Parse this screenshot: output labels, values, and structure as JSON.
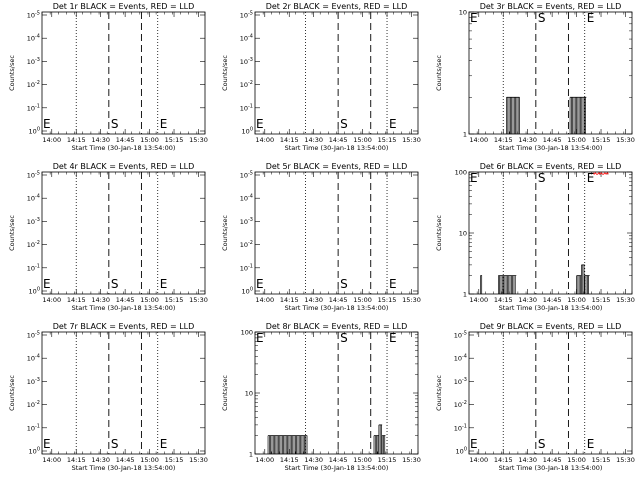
{
  "x_tick_labels": [
    "14:00",
    "14:15",
    "14:30",
    "14:45",
    "15:00",
    "15:15",
    "15:30"
  ],
  "xlabel": "Start Time (30-Jan-18 13:54:00)",
  "ylabel": "Counts/sec",
  "markers": {
    "start": "S",
    "end": "E"
  },
  "series_colors": {
    "events": "#000000",
    "lld": "#ff0000"
  },
  "chart_data": [
    {
      "type": "bar",
      "title": "Det 1r BLACK = Events, RED = LLD",
      "scale": "log-tiny",
      "xlabel": "Start Time (30-Jan-18 13:54:00)",
      "ylabel": "Counts/sec",
      "y_tick_labels": [
        "10^0",
        "10^-1",
        "10^-2",
        "10^-3",
        "10^-4",
        "10^-5"
      ],
      "xlim": [
        "13:54",
        "15:34"
      ],
      "dotted_x": [
        "14:15",
        "15:05"
      ],
      "dashed_x": [
        "14:35",
        "14:55"
      ],
      "s_at": "14:35",
      "e_at": "15:05",
      "events": [],
      "lld": []
    },
    {
      "type": "bar",
      "title": "Det 2r BLACK = Events, RED = LLD",
      "scale": "log-tiny",
      "xlabel": "Start Time (30-Jan-18 13:54:00)",
      "ylabel": "Counts/sec",
      "y_tick_labels": [
        "10^0",
        "10^-1",
        "10^-2",
        "10^-3",
        "10^-4",
        "10^-5"
      ],
      "xlim": [
        "13:54",
        "15:34"
      ],
      "dotted_x": [
        "14:25",
        "15:15"
      ],
      "dashed_x": [
        "14:45",
        "15:05"
      ],
      "s_at": "14:45",
      "e_at": "15:15",
      "events": [],
      "lld": []
    },
    {
      "type": "bar",
      "title": "Det 3r BLACK = Events, RED = LLD",
      "scale": "log",
      "xlabel": "Start Time (30-Jan-18 13:54:00)",
      "ylabel": "Counts/sec",
      "y_tick_labels": [
        "1",
        "10"
      ],
      "xlim": [
        "13:54",
        "15:34"
      ],
      "dotted_x": [
        "14:15",
        "15:05"
      ],
      "dashed_x": [
        "14:35",
        "14:55"
      ],
      "s_at": "14:35",
      "e_at": "15:05",
      "events": [
        {
          "from": "14:17",
          "to": "14:25",
          "value": 2
        },
        {
          "from": "14:56",
          "to": "15:06",
          "value": 2
        }
      ],
      "lld": []
    },
    {
      "type": "bar",
      "title": "Det 4r BLACK = Events, RED = LLD",
      "scale": "log-tiny",
      "xlabel": "Start Time (30-Jan-18 13:54:00)",
      "ylabel": "Counts/sec",
      "y_tick_labels": [
        "10^0",
        "10^-1",
        "10^-2",
        "10^-3",
        "10^-4",
        "10^-5"
      ],
      "xlim": [
        "13:54",
        "15:34"
      ],
      "dotted_x": [
        "14:15",
        "15:05"
      ],
      "dashed_x": [
        "14:35",
        "14:55"
      ],
      "s_at": "14:35",
      "e_at": "15:05",
      "events": [],
      "lld": []
    },
    {
      "type": "bar",
      "title": "Det 5r BLACK = Events, RED = LLD",
      "scale": "log-tiny",
      "xlabel": "Start Time (30-Jan-18 13:54:00)",
      "ylabel": "Counts/sec",
      "y_tick_labels": [
        "10^0",
        "10^-1",
        "10^-2",
        "10^-3",
        "10^-4",
        "10^-5"
      ],
      "xlim": [
        "13:54",
        "15:34"
      ],
      "dotted_x": [
        "14:25",
        "15:15"
      ],
      "dashed_x": [
        "14:45",
        "15:05"
      ],
      "s_at": "14:45",
      "e_at": "15:15",
      "events": [],
      "lld": []
    },
    {
      "type": "bar",
      "title": "Det 6r BLACK = Events, RED = LLD",
      "scale": "log",
      "xlabel": "Start Time (30-Jan-18 13:54:00)",
      "ylabel": "Counts/sec",
      "y_tick_labels": [
        "1",
        "10",
        "100"
      ],
      "xlim": [
        "13:54",
        "15:34"
      ],
      "dotted_x": [
        "14:15",
        "15:05"
      ],
      "dashed_x": [
        "14:35",
        "14:55"
      ],
      "s_at": "14:35",
      "e_at": "15:05",
      "events": [
        {
          "from": "14:01",
          "to": "14:02",
          "value": 2
        },
        {
          "from": "14:12",
          "to": "14:23",
          "value": 2
        },
        {
          "from": "15:00",
          "to": "15:03",
          "value": 2
        },
        {
          "from": "15:03",
          "to": "15:05",
          "value": 3
        },
        {
          "from": "15:05",
          "to": "15:08",
          "value": 2
        }
      ],
      "lld": [
        {
          "from": "15:10",
          "to": "15:20",
          "value": 95
        }
      ]
    },
    {
      "type": "bar",
      "title": "Det 7r BLACK = Events, RED = LLD",
      "scale": "log-tiny",
      "xlabel": "Start Time (30-Jan-18 13:54:00)",
      "ylabel": "Counts/sec",
      "y_tick_labels": [
        "10^0",
        "10^-1",
        "10^-2",
        "10^-3",
        "10^-4",
        "10^-5"
      ],
      "xlim": [
        "13:54",
        "15:34"
      ],
      "dotted_x": [
        "14:15",
        "15:05"
      ],
      "dashed_x": [
        "14:35",
        "14:55"
      ],
      "s_at": "14:35",
      "e_at": "15:05",
      "events": [],
      "lld": []
    },
    {
      "type": "bar",
      "title": "Det 8r BLACK = Events, RED = LLD",
      "scale": "log",
      "xlabel": "Start Time (30-Jan-18 13:54:00)",
      "ylabel": "Counts/sec",
      "y_tick_labels": [
        "1",
        "10",
        "100"
      ],
      "xlim": [
        "13:54",
        "15:34"
      ],
      "dotted_x": [
        "14:25",
        "15:15"
      ],
      "dashed_x": [
        "14:45",
        "15:05"
      ],
      "s_at": "14:45",
      "e_at": "15:15",
      "events": [
        {
          "from": "14:02",
          "to": "14:26",
          "value": 2
        },
        {
          "from": "15:07",
          "to": "15:10",
          "value": 2
        },
        {
          "from": "15:10",
          "to": "15:12",
          "value": 3
        },
        {
          "from": "15:12",
          "to": "15:14",
          "value": 2
        }
      ],
      "lld": []
    },
    {
      "type": "bar",
      "title": "Det 9r BLACK = Events, RED = LLD",
      "scale": "log-tiny",
      "xlabel": "Start Time (30-Jan-18 13:54:00)",
      "ylabel": "Counts/sec",
      "y_tick_labels": [
        "10^0",
        "10^-1",
        "10^-2",
        "10^-3",
        "10^-4",
        "10^-5"
      ],
      "xlim": [
        "13:54",
        "15:34"
      ],
      "dotted_x": [
        "14:15",
        "15:05"
      ],
      "dashed_x": [
        "14:35",
        "14:55"
      ],
      "s_at": "14:35",
      "e_at": "15:05",
      "events": [],
      "lld": []
    }
  ]
}
